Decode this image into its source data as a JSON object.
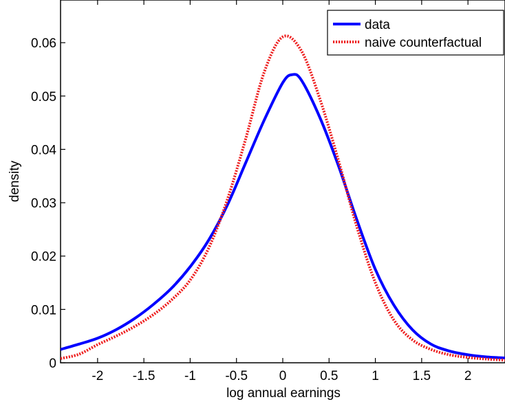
{
  "chart_data": {
    "type": "line",
    "title": "",
    "xlabel": "log annual earnings",
    "ylabel": "density",
    "xlim": [
      -2.4,
      2.4
    ],
    "ylim": [
      0,
      0.068
    ],
    "grid": false,
    "legend_position": "top-right",
    "x_ticks": [
      {
        "value": -2,
        "label": "-2"
      },
      {
        "value": -1.5,
        "label": "-1.5"
      },
      {
        "value": -1,
        "label": "-1"
      },
      {
        "value": -0.5,
        "label": "-0.5"
      },
      {
        "value": 0,
        "label": "0"
      },
      {
        "value": 0.5,
        "label": "0.5"
      },
      {
        "value": 1,
        "label": "1"
      },
      {
        "value": 1.5,
        "label": "1.5"
      },
      {
        "value": 2,
        "label": "2"
      }
    ],
    "y_ticks": [
      {
        "value": 0,
        "label": "0"
      },
      {
        "value": 0.01,
        "label": "0.01"
      },
      {
        "value": 0.02,
        "label": "0.02"
      },
      {
        "value": 0.03,
        "label": "0.03"
      },
      {
        "value": 0.04,
        "label": "0.04"
      },
      {
        "value": 0.05,
        "label": "0.05"
      },
      {
        "value": 0.06,
        "label": "0.06"
      }
    ],
    "series": [
      {
        "name": "data",
        "color": "#0000ff",
        "style": "solid",
        "x": [
          -2.4,
          -2.2,
          -2.0,
          -1.8,
          -1.6,
          -1.4,
          -1.2,
          -1.0,
          -0.8,
          -0.6,
          -0.4,
          -0.2,
          0.0,
          0.1,
          0.2,
          0.4,
          0.6,
          0.8,
          1.0,
          1.2,
          1.4,
          1.6,
          1.8,
          2.0,
          2.2,
          2.4
        ],
        "y": [
          0.0025,
          0.0035,
          0.0046,
          0.0062,
          0.0083,
          0.0109,
          0.014,
          0.018,
          0.023,
          0.0295,
          0.0375,
          0.0455,
          0.0525,
          0.054,
          0.053,
          0.046,
          0.037,
          0.0268,
          0.0175,
          0.0108,
          0.0062,
          0.0035,
          0.0022,
          0.0015,
          0.0011,
          0.0009
        ]
      },
      {
        "name": "naive counterfactual",
        "color": "#ee2222",
        "style": "dotted",
        "x": [
          -2.4,
          -2.2,
          -2.0,
          -1.8,
          -1.6,
          -1.4,
          -1.2,
          -1.0,
          -0.8,
          -0.6,
          -0.4,
          -0.2,
          0.0,
          0.2,
          0.4,
          0.6,
          0.8,
          1.0,
          1.2,
          1.4,
          1.6,
          1.8,
          2.0,
          2.2,
          2.4
        ],
        "y": [
          0.0008,
          0.0016,
          0.0034,
          0.005,
          0.0068,
          0.009,
          0.0118,
          0.0155,
          0.0215,
          0.0305,
          0.042,
          0.0545,
          0.0611,
          0.0585,
          0.0495,
          0.038,
          0.0255,
          0.015,
          0.008,
          0.0043,
          0.0025,
          0.0015,
          0.001,
          0.0007,
          0.0005
        ]
      }
    ]
  }
}
